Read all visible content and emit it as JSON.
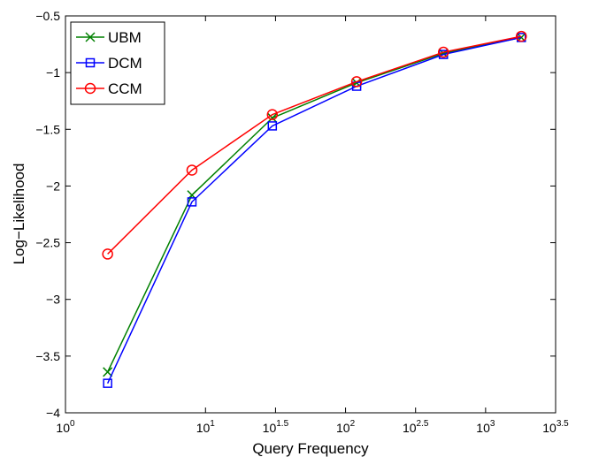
{
  "chart_data": {
    "type": "line",
    "xlabel": "Query Frequency",
    "ylabel": "Log−Likelihood",
    "x_scale": "log10",
    "x": [
      2,
      8,
      30,
      120,
      500,
      1800
    ],
    "xlim": [
      1,
      3162.28
    ],
    "ylim": [
      -4,
      -0.5
    ],
    "x_ticks": [
      {
        "value": 1,
        "base": "10",
        "exp": "0"
      },
      {
        "value": 10,
        "base": "10",
        "exp": "1"
      },
      {
        "value": 31.62,
        "base": "10",
        "exp": "1.5"
      },
      {
        "value": 100,
        "base": "10",
        "exp": "2"
      },
      {
        "value": 316.2,
        "base": "10",
        "exp": "2.5"
      },
      {
        "value": 1000,
        "base": "10",
        "exp": "3"
      },
      {
        "value": 3162.28,
        "base": "10",
        "exp": "3.5"
      }
    ],
    "y_ticks": [
      {
        "value": -0.5,
        "label": "−0.5"
      },
      {
        "value": -1,
        "label": "−1"
      },
      {
        "value": -1.5,
        "label": "−1.5"
      },
      {
        "value": -2,
        "label": "−2"
      },
      {
        "value": -2.5,
        "label": "−2.5"
      },
      {
        "value": -3,
        "label": "−3"
      },
      {
        "value": -3.5,
        "label": "−3.5"
      },
      {
        "value": -4,
        "label": "−4"
      }
    ],
    "grid": false,
    "legend_position": "top-left",
    "series": [
      {
        "name": "UBM",
        "color": "#008000",
        "marker": "x",
        "values": [
          -3.64,
          -2.08,
          -1.4,
          -1.09,
          -0.83,
          -0.69
        ]
      },
      {
        "name": "DCM",
        "color": "#0000ff",
        "marker": "square",
        "values": [
          -3.74,
          -2.14,
          -1.47,
          -1.12,
          -0.84,
          -0.69
        ]
      },
      {
        "name": "CCM",
        "color": "#ff0000",
        "marker": "circle",
        "values": [
          -2.6,
          -1.86,
          -1.37,
          -1.08,
          -0.82,
          -0.68
        ]
      }
    ]
  }
}
